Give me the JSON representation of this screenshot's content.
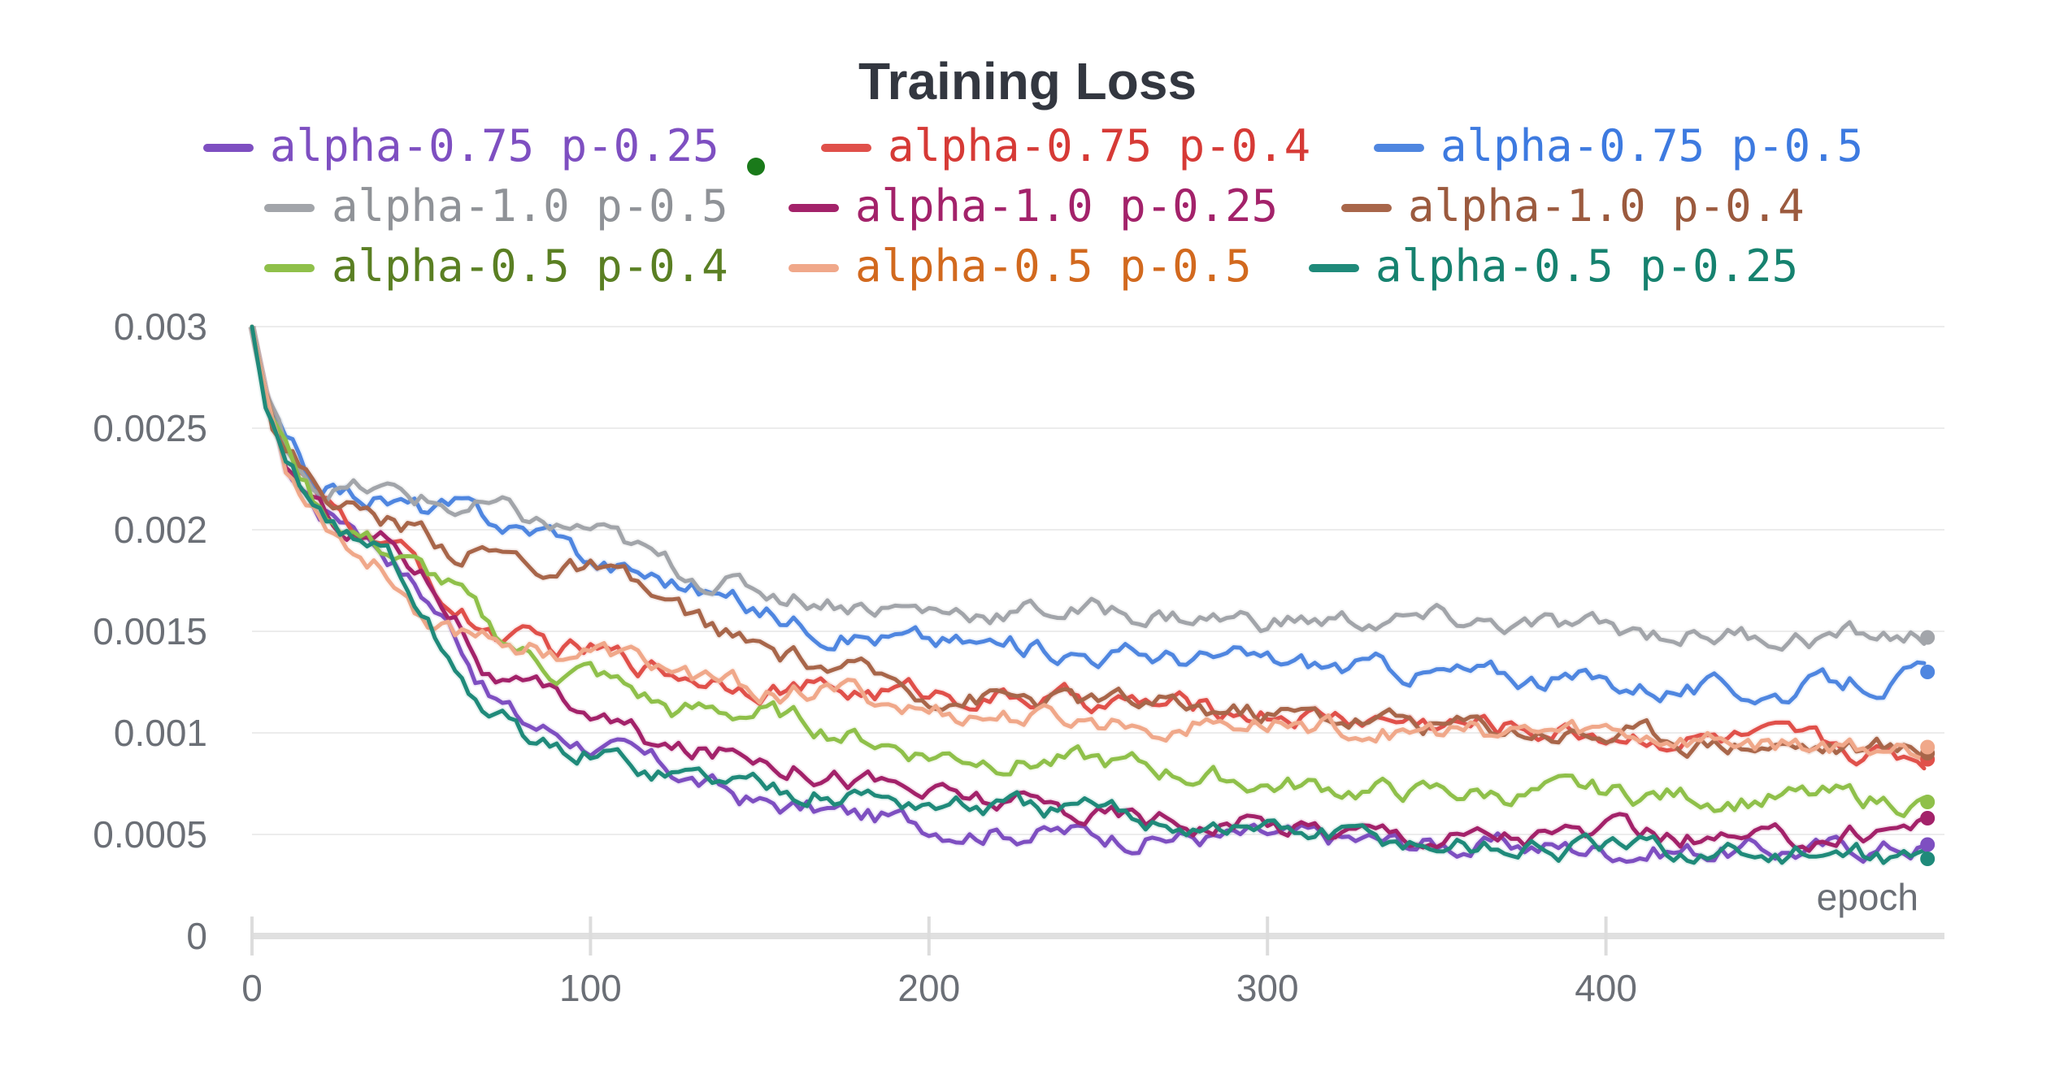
{
  "chart_data": {
    "type": "line",
    "title": "Training Loss",
    "xlabel": "epoch",
    "ylabel": "",
    "xlim": [
      0,
      500
    ],
    "ylim": [
      0,
      0.003
    ],
    "x_ticks": [
      0,
      100,
      200,
      300,
      400
    ],
    "x_tick_labels": [
      "0",
      "100",
      "200",
      "300",
      "400"
    ],
    "y_ticks": [
      0,
      0.0005,
      0.001,
      0.0015,
      0.002,
      0.0025,
      0.003
    ],
    "y_tick_labels": [
      "0",
      "0.0005",
      "0.001",
      "0.0015",
      "0.002",
      "0.0025",
      "0.003"
    ],
    "grid": true,
    "legend_position": "top",
    "x": [
      0,
      5,
      10,
      20,
      30,
      40,
      50,
      60,
      70,
      80,
      90,
      100,
      125,
      150,
      175,
      200,
      250,
      300,
      350,
      400,
      450,
      500
    ],
    "series": [
      {
        "name": "alpha-0.75 p-0.25",
        "color": "#7e4fc1",
        "text_color": "#7e4fc1",
        "values": [
          0.003,
          0.0026,
          0.0023,
          0.0021,
          0.00205,
          0.0019,
          0.0017,
          0.0015,
          0.0012,
          0.00105,
          0.001,
          0.00095,
          0.0008,
          0.00065,
          0.0006,
          0.00055,
          0.0005,
          0.00048,
          0.00045,
          0.00043,
          0.00042,
          0.00045
        ]
      },
      {
        "name": "alpha-0.75 p-0.4",
        "color": "#e0504a",
        "text_color": "#d63a36",
        "values": [
          0.003,
          0.0026,
          0.0024,
          0.0021,
          0.002,
          0.00195,
          0.0018,
          0.0016,
          0.0015,
          0.00145,
          0.0014,
          0.0014,
          0.0013,
          0.00125,
          0.0012,
          0.0012,
          0.00115,
          0.0011,
          0.00105,
          0.001,
          0.00095,
          0.00087
        ]
      },
      {
        "name": "alpha-0.75 p-0.5",
        "color": "#4f86e0",
        "text_color": "#3d7ae0",
        "values": [
          0.003,
          0.0026,
          0.0024,
          0.0022,
          0.00218,
          0.00215,
          0.0021,
          0.0021,
          0.00205,
          0.002,
          0.002,
          0.00185,
          0.00175,
          0.0016,
          0.0015,
          0.00145,
          0.0014,
          0.00135,
          0.0013,
          0.00125,
          0.0012,
          0.0013
        ]
      },
      {
        "name": "alpha-1.0 p-0.5",
        "color": "#a2a5aa",
        "text_color": "#8f9297",
        "values": [
          0.003,
          0.0026,
          0.0024,
          0.00222,
          0.0022,
          0.00218,
          0.00215,
          0.0021,
          0.0021,
          0.00205,
          0.002,
          0.002,
          0.0018,
          0.0017,
          0.00165,
          0.0016,
          0.0016,
          0.00155,
          0.00155,
          0.0015,
          0.00148,
          0.00147
        ]
      },
      {
        "name": "alpha-1.0 p-0.25",
        "color": "#a3226a",
        "text_color": "#a3226a",
        "values": [
          0.003,
          0.0026,
          0.0023,
          0.0021,
          0.002,
          0.00195,
          0.0018,
          0.0016,
          0.0013,
          0.0012,
          0.00115,
          0.0011,
          0.0009,
          0.0009,
          0.0008,
          0.0007,
          0.0006,
          0.00055,
          0.0005,
          0.0005,
          0.00045,
          0.00058
        ]
      },
      {
        "name": "alpha-1.0 p-0.4",
        "color": "#a8664a",
        "text_color": "#9b5a3e",
        "values": [
          0.003,
          0.0026,
          0.0024,
          0.0022,
          0.0021,
          0.00205,
          0.002,
          0.0019,
          0.0019,
          0.00185,
          0.0018,
          0.0018,
          0.0016,
          0.0014,
          0.0013,
          0.0012,
          0.00115,
          0.0011,
          0.00105,
          0.001,
          0.00095,
          0.0009
        ]
      },
      {
        "name": "alpha-0.5 p-0.4",
        "color": "#8fc04a",
        "text_color": "#5a7f23",
        "values": [
          0.003,
          0.0026,
          0.0024,
          0.0021,
          0.002,
          0.0019,
          0.0018,
          0.0017,
          0.0015,
          0.0014,
          0.0013,
          0.0013,
          0.0011,
          0.0011,
          0.001,
          0.0009,
          0.00085,
          0.00075,
          0.0007,
          0.0007,
          0.00068,
          0.00066
        ]
      },
      {
        "name": "alpha-0.5 p-0.5",
        "color": "#f0a88a",
        "text_color": "#d2691e",
        "values": [
          0.003,
          0.0026,
          0.0023,
          0.0021,
          0.0019,
          0.0018,
          0.0016,
          0.0015,
          0.0015,
          0.00145,
          0.0014,
          0.0014,
          0.0013,
          0.0012,
          0.0012,
          0.0011,
          0.00105,
          0.00105,
          0.001,
          0.001,
          0.00095,
          0.00093
        ]
      },
      {
        "name": "alpha-0.5 p-0.25",
        "color": "#1f8a7a",
        "text_color": "#16826f",
        "values": [
          0.003,
          0.0025,
          0.0023,
          0.0021,
          0.00195,
          0.0019,
          0.0016,
          0.0013,
          0.0011,
          0.001,
          0.0009,
          0.0009,
          0.0008,
          0.00075,
          0.0007,
          0.00065,
          0.0006,
          0.00052,
          0.00045,
          0.00042,
          0.0004,
          0.00038
        ]
      }
    ]
  },
  "legend_marker_color": "#1a7a1a"
}
